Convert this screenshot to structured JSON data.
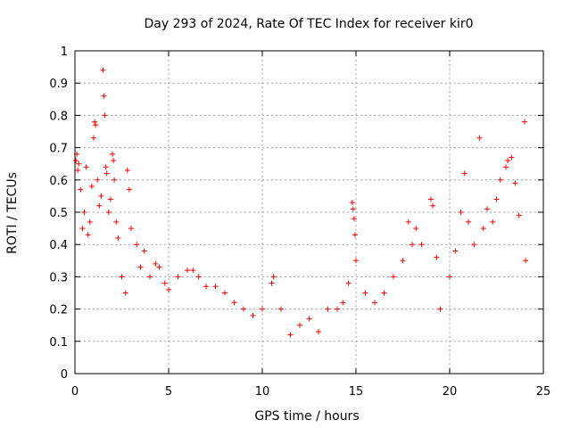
{
  "chart_data": {
    "type": "scatter",
    "title": "Day 293 of 2024, Rate Of TEC Index for receiver kir0",
    "xlabel": "GPS time / hours",
    "ylabel": "ROTI / TECUs",
    "xlim": [
      0,
      25
    ],
    "ylim": [
      0,
      1
    ],
    "xticks": [
      0,
      5,
      10,
      15,
      20,
      25
    ],
    "yticks": [
      0,
      0.1,
      0.2,
      0.3,
      0.4,
      0.5,
      0.6,
      0.7,
      0.8,
      0.9,
      1
    ],
    "xtick_labels": [
      "0",
      "5",
      "10",
      "15",
      "20",
      "25"
    ],
    "ytick_labels": [
      "0",
      "0.1",
      "0.2",
      "0.3",
      "0.4",
      "0.5",
      "0.6",
      "0.7",
      "0.8",
      "0.9",
      "1"
    ],
    "grid": true,
    "marker": "+",
    "color": "#ff0000",
    "series": [
      {
        "name": "ROTI",
        "points": [
          [
            0.05,
            0.66
          ],
          [
            0.1,
            0.68
          ],
          [
            0.15,
            0.63
          ],
          [
            0.2,
            0.65
          ],
          [
            0.3,
            0.57
          ],
          [
            0.4,
            0.45
          ],
          [
            0.5,
            0.5
          ],
          [
            0.6,
            0.64
          ],
          [
            0.7,
            0.43
          ],
          [
            0.8,
            0.47
          ],
          [
            0.9,
            0.58
          ],
          [
            1.0,
            0.73
          ],
          [
            1.05,
            0.78
          ],
          [
            1.1,
            0.77
          ],
          [
            1.2,
            0.6
          ],
          [
            1.3,
            0.52
          ],
          [
            1.4,
            0.55
          ],
          [
            1.5,
            0.94
          ],
          [
            1.55,
            0.86
          ],
          [
            1.6,
            0.8
          ],
          [
            1.65,
            0.64
          ],
          [
            1.7,
            0.62
          ],
          [
            1.8,
            0.5
          ],
          [
            1.9,
            0.54
          ],
          [
            2.0,
            0.68
          ],
          [
            2.05,
            0.66
          ],
          [
            2.1,
            0.6
          ],
          [
            2.2,
            0.47
          ],
          [
            2.3,
            0.42
          ],
          [
            2.5,
            0.3
          ],
          [
            2.7,
            0.25
          ],
          [
            2.8,
            0.63
          ],
          [
            2.9,
            0.57
          ],
          [
            3.0,
            0.45
          ],
          [
            3.3,
            0.4
          ],
          [
            3.5,
            0.33
          ],
          [
            3.7,
            0.38
          ],
          [
            4.0,
            0.3
          ],
          [
            4.3,
            0.34
          ],
          [
            4.5,
            0.33
          ],
          [
            4.8,
            0.28
          ],
          [
            5.0,
            0.26
          ],
          [
            5.5,
            0.3
          ],
          [
            6.0,
            0.32
          ],
          [
            6.3,
            0.32
          ],
          [
            6.6,
            0.3
          ],
          [
            7.0,
            0.27
          ],
          [
            7.5,
            0.27
          ],
          [
            8.0,
            0.25
          ],
          [
            8.5,
            0.22
          ],
          [
            9.0,
            0.2
          ],
          [
            9.5,
            0.18
          ],
          [
            10.0,
            0.2
          ],
          [
            10.5,
            0.28
          ],
          [
            10.6,
            0.3
          ],
          [
            11.0,
            0.2
          ],
          [
            11.5,
            0.12
          ],
          [
            12.0,
            0.15
          ],
          [
            12.5,
            0.17
          ],
          [
            13.0,
            0.13
          ],
          [
            13.5,
            0.2
          ],
          [
            14.0,
            0.2
          ],
          [
            14.3,
            0.22
          ],
          [
            14.6,
            0.28
          ],
          [
            14.8,
            0.53
          ],
          [
            14.85,
            0.51
          ],
          [
            14.9,
            0.48
          ],
          [
            14.95,
            0.43
          ],
          [
            15.0,
            0.35
          ],
          [
            15.5,
            0.25
          ],
          [
            16.0,
            0.22
          ],
          [
            16.5,
            0.25
          ],
          [
            17.0,
            0.3
          ],
          [
            17.5,
            0.35
          ],
          [
            17.8,
            0.47
          ],
          [
            18.0,
            0.4
          ],
          [
            18.2,
            0.45
          ],
          [
            18.5,
            0.4
          ],
          [
            19.0,
            0.54
          ],
          [
            19.1,
            0.52
          ],
          [
            19.3,
            0.36
          ],
          [
            19.5,
            0.2
          ],
          [
            20.0,
            0.3
          ],
          [
            20.3,
            0.38
          ],
          [
            20.6,
            0.5
          ],
          [
            20.8,
            0.62
          ],
          [
            21.0,
            0.47
          ],
          [
            21.3,
            0.4
          ],
          [
            21.6,
            0.73
          ],
          [
            21.8,
            0.45
          ],
          [
            22.0,
            0.51
          ],
          [
            22.3,
            0.47
          ],
          [
            22.5,
            0.54
          ],
          [
            22.7,
            0.6
          ],
          [
            23.0,
            0.64
          ],
          [
            23.1,
            0.66
          ],
          [
            23.3,
            0.67
          ],
          [
            23.5,
            0.59
          ],
          [
            23.7,
            0.49
          ],
          [
            24.0,
            0.78
          ],
          [
            24.05,
            0.35
          ]
        ]
      }
    ]
  }
}
